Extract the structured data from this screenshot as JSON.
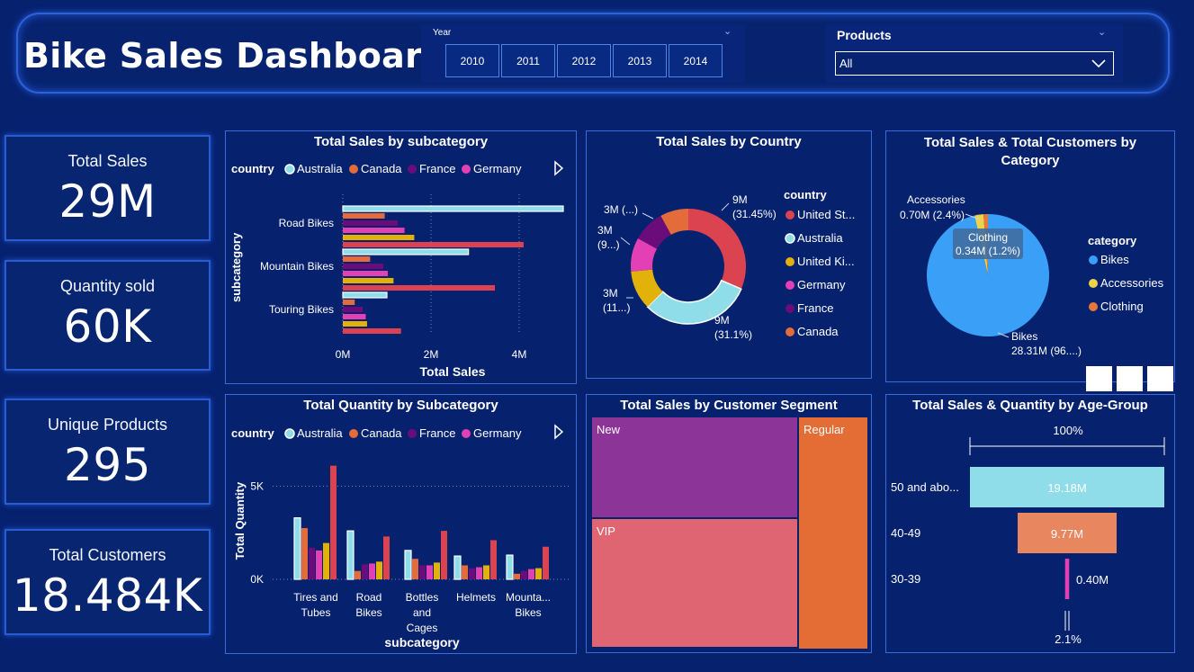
{
  "header": {
    "title": "Bike Sales Dashboard",
    "year_label": "Year",
    "years": [
      "2010",
      "2011",
      "2012",
      "2013",
      "2014"
    ],
    "products_label": "Products",
    "products_value": "All"
  },
  "kpis": [
    {
      "label": "Total Sales",
      "value": "29M"
    },
    {
      "label": "Quantity sold",
      "value": "60K"
    },
    {
      "label": "Unique Products",
      "value": "295"
    },
    {
      "label": "Total Customers",
      "value": "18.484K"
    }
  ],
  "colors": {
    "Australia": "#8fdde8",
    "Canada": "#e46c3b",
    "France": "#6a0d7a",
    "Germany": "#e340b6",
    "United Kingdom": "#e3b20a",
    "United States": "#dc4350",
    "Bikes": "#3aa0f7",
    "Accessories": "#ebd44c",
    "Clothing": "#e7773a",
    "New": "#8c3497",
    "Regular": "#e36d35",
    "VIP": "#e06572"
  },
  "chart_data": [
    {
      "id": "sales_by_subcategory",
      "type": "bar",
      "orientation": "horizontal",
      "title": "Total Sales by subcategory",
      "legend_title": "country",
      "legend": [
        "Australia",
        "Canada",
        "France",
        "Germany"
      ],
      "xlabel": "Total Sales",
      "ylabel": "subcategory",
      "x_ticks": [
        "0M",
        "2M",
        "4M"
      ],
      "xlim": [
        0,
        5000000
      ],
      "categories": [
        "Road Bikes",
        "Mountain Bikes",
        "Touring Bikes"
      ],
      "series": [
        {
          "name": "Australia",
          "values": [
            5000000,
            2850000,
            1000000
          ]
        },
        {
          "name": "Canada",
          "values": [
            950000,
            620000,
            270000
          ]
        },
        {
          "name": "France",
          "values": [
            1250000,
            920000,
            450000
          ]
        },
        {
          "name": "Germany",
          "values": [
            1400000,
            1020000,
            520000
          ]
        },
        {
          "name": "United Kingdom",
          "values": [
            1620000,
            1150000,
            550000
          ]
        },
        {
          "name": "United States",
          "values": [
            4100000,
            3450000,
            1320000
          ]
        }
      ]
    },
    {
      "id": "sales_by_country",
      "type": "pie",
      "donut": true,
      "title": "Total Sales by Country",
      "legend_title": "country",
      "legend": [
        "United St...",
        "Australia",
        "United Ki...",
        "Germany",
        "France",
        "Canada"
      ],
      "slices": [
        {
          "name": "United States",
          "value": 31.45,
          "label": [
            "9M",
            "(31.45%)"
          ]
        },
        {
          "name": "Australia",
          "value": 31.1,
          "label": [
            "9M",
            "(31.1%)"
          ]
        },
        {
          "name": "United Kingdom",
          "value": 11.0,
          "label": [
            "3M",
            "(11...)"
          ]
        },
        {
          "name": "Germany",
          "value": 9.5,
          "label": [
            "3M",
            "(9...)"
          ]
        },
        {
          "name": "France",
          "value": 9.0,
          "label": [
            "3M (...)"
          ]
        },
        {
          "name": "Canada",
          "value": 7.95,
          "label": []
        }
      ]
    },
    {
      "id": "sales_customers_by_category",
      "type": "pie",
      "title": "Total Sales & Total Customers by Category",
      "legend_title": "category",
      "legend": [
        "Bikes",
        "Accessories",
        "Clothing"
      ],
      "slices": [
        {
          "name": "Bikes",
          "value": 28.31,
          "label": [
            "Bikes",
            "28.31M (96....)"
          ]
        },
        {
          "name": "Accessories",
          "value": 0.7,
          "label": [
            "Accessories",
            "0.70M (2.4%)"
          ]
        },
        {
          "name": "Clothing",
          "value": 0.34,
          "label": [
            "Clothing",
            "0.34M (1.2%)"
          ]
        }
      ]
    },
    {
      "id": "quantity_by_subcategory",
      "type": "bar",
      "orientation": "vertical",
      "title": "Total Quantity by Subcategory",
      "legend_title": "country",
      "legend": [
        "Australia",
        "Canada",
        "France",
        "Germany"
      ],
      "xlabel": "subcategory",
      "ylabel": "Total Quantity",
      "y_ticks": [
        "0K",
        "5K"
      ],
      "ylim": [
        0,
        7000
      ],
      "categories": [
        [
          "Tires and",
          "Tubes"
        ],
        [
          "Road",
          "Bikes"
        ],
        [
          "Bottles",
          "and",
          "Cages"
        ],
        [
          "Helmets"
        ],
        [
          "Mounta...",
          "Bikes"
        ]
      ],
      "series": [
        {
          "name": "Australia",
          "values": [
            3300,
            2600,
            1550,
            1250,
            1300
          ]
        },
        {
          "name": "Canada",
          "values": [
            2750,
            450,
            1100,
            750,
            300
          ]
        },
        {
          "name": "France",
          "values": [
            1700,
            800,
            750,
            600,
            450
          ]
        },
        {
          "name": "Germany",
          "values": [
            1550,
            850,
            750,
            650,
            550
          ]
        },
        {
          "name": "United Kingdom",
          "values": [
            1950,
            950,
            900,
            750,
            600
          ]
        },
        {
          "name": "United States",
          "values": [
            6100,
            2300,
            2600,
            2100,
            1750
          ]
        }
      ]
    },
    {
      "id": "sales_by_segment",
      "type": "treemap",
      "title": "Total Sales by Customer Segment",
      "cells": [
        {
          "name": "New",
          "value": 9.6
        },
        {
          "name": "VIP",
          "value": 12.2
        },
        {
          "name": "Regular",
          "value": 7.2
        }
      ]
    },
    {
      "id": "sales_quantity_by_agegroup",
      "type": "funnel",
      "title": "Total Sales & Quantity by Age-Group",
      "top_percent_label": "100%",
      "bottom_percent_label": "2.1%",
      "stages": [
        {
          "name": "50 and abo...",
          "value": 19.18,
          "label": "19.18M",
          "color": "#8fdde8"
        },
        {
          "name": "40-49",
          "value": 9.77,
          "label": "9.77M",
          "color": "#e8865f"
        },
        {
          "name": "30-39",
          "value": 0.4,
          "label": "0.40M",
          "color": "#e340b6"
        }
      ]
    }
  ]
}
